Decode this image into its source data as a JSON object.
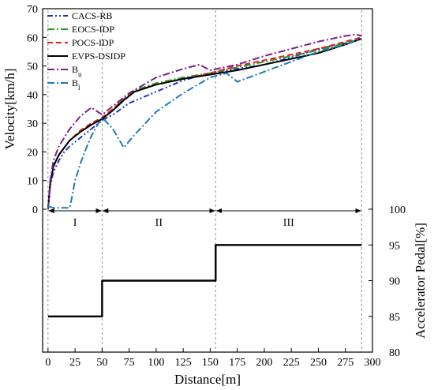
{
  "chart_data": {
    "type": "line",
    "title": "",
    "xlabel": "Distance[m]",
    "ylabel": "Velocity[km/h]",
    "ylabel_right": "Accelerator Pedal[%]",
    "xlim": [
      -5,
      300
    ],
    "ylim": [
      0,
      70
    ],
    "ylim_right": [
      80,
      100
    ],
    "x_ticks": [
      0,
      25,
      50,
      75,
      100,
      125,
      150,
      175,
      200,
      225,
      250,
      275,
      300
    ],
    "y_ticks": [
      0,
      10,
      20,
      30,
      40,
      50,
      60,
      70
    ],
    "y_ticks_right": [
      80,
      85,
      90,
      95,
      100
    ],
    "grid": false,
    "legend_position": "top-left",
    "colors": {
      "CACS-RB": "#1f33cc",
      "EOCS-IDP": "#2a9d2a",
      "POCS-IDP": "#e8201a",
      "EVPS-DSIDP": "#000000",
      "B_u": "#7a1f8f",
      "B_l": "#1f7ab8"
    },
    "series": [
      {
        "name": "CACS-RB",
        "legend": "CACS-RB",
        "style": "dashdotdot",
        "axis": "left",
        "x": [
          0,
          2,
          5,
          10,
          15,
          20,
          30,
          40,
          50,
          60,
          75,
          100,
          125,
          150,
          175,
          200,
          225,
          250,
          275,
          290
        ],
        "y": [
          0,
          8,
          13,
          17,
          20,
          22,
          25,
          28,
          31,
          33,
          37,
          41,
          45,
          47.5,
          49,
          50.5,
          53,
          56,
          58,
          59.5
        ]
      },
      {
        "name": "EOCS-IDP",
        "legend": "EOCS-IDP",
        "style": "dashdot",
        "axis": "left",
        "x": [
          0,
          2,
          5,
          10,
          20,
          30,
          40,
          50,
          60,
          70,
          80,
          100,
          125,
          150,
          175,
          200,
          225,
          250,
          275,
          290
        ],
        "y": [
          0,
          9,
          15,
          19,
          24,
          27,
          29.5,
          31.5,
          35,
          38.5,
          41.5,
          44,
          46,
          47.5,
          49.5,
          51.5,
          53.5,
          55.5,
          58,
          59.5
        ]
      },
      {
        "name": "POCS-IDP",
        "legend": "POCS-IDP",
        "style": "dash",
        "axis": "left",
        "x": [
          0,
          2,
          5,
          10,
          20,
          30,
          40,
          50,
          60,
          70,
          80,
          100,
          125,
          150,
          175,
          200,
          225,
          250,
          275,
          290
        ],
        "y": [
          0,
          9,
          15,
          19,
          24,
          27.5,
          30,
          32,
          35,
          38.5,
          41,
          43.5,
          45.5,
          47.5,
          50,
          52,
          54,
          56,
          58.5,
          60
        ]
      },
      {
        "name": "EVPS-DSIDP",
        "legend": "EVPS-DSIDP",
        "style": "solid",
        "axis": "left",
        "x": [
          0,
          2,
          5,
          10,
          20,
          30,
          40,
          50,
          60,
          70,
          80,
          100,
          125,
          150,
          175,
          200,
          225,
          250,
          275,
          290
        ],
        "y": [
          0,
          9,
          15,
          19,
          24,
          27,
          29.5,
          31.5,
          34.5,
          38,
          41,
          43.5,
          45.5,
          47,
          48.5,
          50.5,
          52.5,
          54.5,
          57.5,
          59.5
        ]
      },
      {
        "name": "B_u",
        "legend": "B",
        "legend_sub": "u",
        "style": "dashdot",
        "axis": "left",
        "x": [
          0,
          2,
          5,
          10,
          20,
          30,
          40,
          50,
          60,
          75,
          100,
          125,
          140,
          150,
          175,
          200,
          225,
          250,
          275,
          285,
          290
        ],
        "y": [
          0,
          10,
          17,
          22,
          28,
          32.5,
          35.5,
          33,
          36,
          40.5,
          46,
          49,
          50.5,
          48.5,
          50.5,
          53.5,
          56,
          58.5,
          60.5,
          61,
          60.5
        ]
      },
      {
        "name": "B_l",
        "legend": "B",
        "legend_sub": "l",
        "style": "dashdot",
        "axis": "left",
        "x": [
          0,
          5,
          20,
          22,
          25,
          30,
          35,
          40,
          45,
          50,
          60,
          70,
          80,
          100,
          125,
          150,
          165,
          175,
          200,
          225,
          250,
          275,
          290
        ],
        "y": [
          1,
          0.5,
          0.5,
          4,
          10,
          16,
          21,
          25.5,
          29,
          32,
          28,
          21.5,
          26,
          34,
          40.5,
          46,
          47.5,
          44.5,
          48,
          51.5,
          55,
          57.5,
          59.5
        ]
      },
      {
        "name": "Accelerator Pedal",
        "style": "step",
        "axis": "right",
        "x": [
          0,
          50,
          50,
          155,
          155,
          290
        ],
        "y": [
          85,
          85,
          90,
          90,
          95,
          95
        ]
      }
    ],
    "regions": [
      {
        "label": "I",
        "x_start": 0,
        "x_end": 50
      },
      {
        "label": "II",
        "x_start": 50,
        "x_end": 155
      },
      {
        "label": "III",
        "x_start": 155,
        "x_end": 290
      }
    ]
  }
}
